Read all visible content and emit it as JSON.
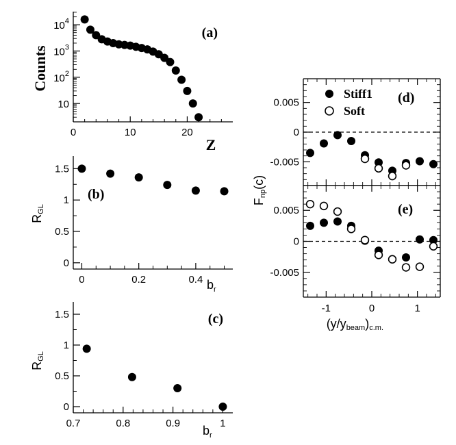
{
  "chart_data": [
    {
      "id": "a",
      "type": "scatter",
      "panel_label": "(a)",
      "ylabel": "Counts",
      "xlabel": "Z",
      "xlim": [
        0,
        28
      ],
      "ylim_log10": [
        0.3,
        4.5
      ],
      "yscale": "log",
      "xticks": [
        "0",
        "10",
        "20"
      ],
      "yticks": [
        {
          "base": "10",
          "exp": "4"
        },
        {
          "base": "10",
          "exp": "3"
        },
        {
          "base": "10",
          "exp": "2"
        },
        {
          "base": "10",
          "exp": ""
        }
      ],
      "x": [
        2,
        3,
        4,
        5,
        6,
        7,
        8,
        9,
        10,
        11,
        12,
        13,
        14,
        15,
        16,
        17,
        18,
        19,
        20,
        21,
        22
      ],
      "y": [
        16000,
        6500,
        4000,
        2800,
        2300,
        2000,
        1800,
        1700,
        1600,
        1450,
        1300,
        1150,
        950,
        750,
        550,
        380,
        180,
        80,
        30,
        10,
        3
      ]
    },
    {
      "id": "b",
      "type": "scatter",
      "panel_label": "(b)",
      "ylabel": {
        "main": "R",
        "sub": "GL"
      },
      "xlabel": {
        "main": "b",
        "sub": "r"
      },
      "xlim": [
        -0.03,
        0.53
      ],
      "ylim": [
        -0.1,
        1.7
      ],
      "xticks": [
        "0",
        "0.2",
        "0.4"
      ],
      "yticks": [
        "0",
        "0.5",
        "1",
        "1.5"
      ],
      "x": [
        0.0,
        0.1,
        0.2,
        0.3,
        0.4,
        0.5
      ],
      "y": [
        1.5,
        1.42,
        1.36,
        1.24,
        1.15,
        1.14
      ]
    },
    {
      "id": "c",
      "type": "scatter",
      "panel_label": "(c)",
      "ylabel": {
        "main": "R",
        "sub": "GL"
      },
      "xlabel": {
        "main": "b",
        "sub": "r"
      },
      "xlim": [
        0.7,
        1.02
      ],
      "ylim": [
        -0.1,
        1.7
      ],
      "xticks": [
        "0.7",
        "0.8",
        "0.9",
        "1"
      ],
      "yticks": [
        "0",
        "0.5",
        "1",
        "1.5"
      ],
      "x": [
        0.727,
        0.818,
        0.909,
        1.0
      ],
      "y": [
        0.94,
        0.48,
        0.3,
        0.0
      ]
    },
    {
      "id": "d",
      "type": "scatter",
      "panel_label": "(d)",
      "ylabel": {
        "main": "F",
        "sub": "np",
        "suffix": "(c)"
      },
      "xlim": [
        -1.5,
        1.5
      ],
      "ylim": [
        -0.009,
        0.009
      ],
      "yticks": [
        "-0.005",
        "0",
        "0.005"
      ],
      "legend": {
        "filled": "Stiff1",
        "open": "Soft",
        "position": "top-left"
      },
      "series": [
        {
          "name": "Stiff1",
          "marker": "filled",
          "x": [
            -1.35,
            -1.05,
            -0.75,
            -0.45,
            -0.15,
            0.15,
            0.45,
            0.75,
            1.05,
            1.35
          ],
          "y": [
            -0.0035,
            -0.0019,
            -0.0005,
            -0.0015,
            -0.0039,
            -0.0051,
            -0.0065,
            -0.0052,
            -0.0049,
            -0.0054
          ]
        },
        {
          "name": "Soft",
          "marker": "open",
          "x": [
            -0.15,
            0.15,
            0.45,
            0.75
          ],
          "y": [
            -0.0045,
            -0.0061,
            -0.0074,
            -0.0056
          ]
        }
      ]
    },
    {
      "id": "e",
      "type": "scatter",
      "panel_label": "(e)",
      "xlabel": {
        "main": "(y/y",
        "sub": "beam",
        "suffix": ")",
        "sub2": "c.m."
      },
      "xlim": [
        -1.5,
        1.5
      ],
      "ylim": [
        -0.009,
        0.009
      ],
      "xticks": [
        "-1",
        "0",
        "1"
      ],
      "yticks": [
        "-0.005",
        "0",
        "0.005"
      ],
      "series": [
        {
          "name": "Stiff1",
          "marker": "filled",
          "x": [
            -1.35,
            -1.05,
            -0.75,
            -0.45,
            -0.15,
            0.15,
            0.45,
            0.75,
            1.05,
            1.35
          ],
          "y": [
            0.0025,
            0.003,
            0.0032,
            0.0025,
            0.0001,
            -0.0015,
            -0.0029,
            -0.0026,
            0.0003,
            0.0002
          ]
        },
        {
          "name": "Soft",
          "marker": "open",
          "x": [
            -1.35,
            -1.05,
            -0.75,
            -0.45,
            -0.15,
            0.15,
            0.45,
            0.75,
            1.05,
            1.35
          ],
          "y": [
            0.006,
            0.0057,
            0.0048,
            0.002,
            0.0002,
            -0.0022,
            -0.0029,
            -0.0042,
            -0.0041,
            -0.0008
          ]
        }
      ]
    }
  ]
}
